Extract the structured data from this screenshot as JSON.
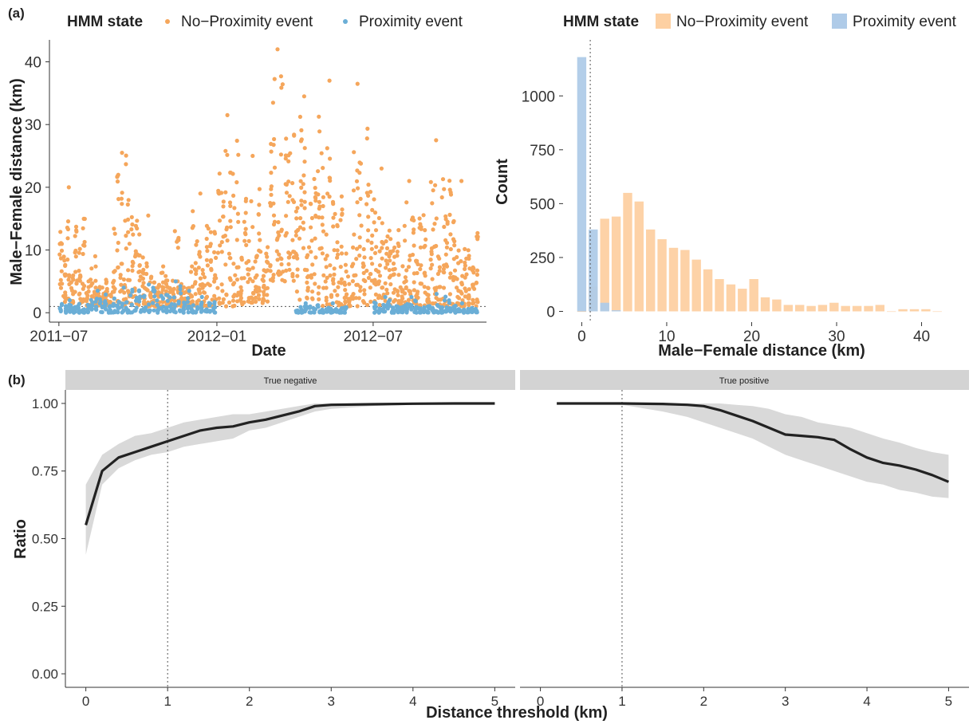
{
  "figure": {
    "panel_a_tag": "(a)",
    "panel_b_tag": "(b)"
  },
  "colors": {
    "no_prox": "#F5A65B",
    "prox": "#6BAED6",
    "no_prox_bar": "#FDD0A2",
    "prox_bar": "#AFCBE8",
    "ribbon": "#D9D9D9",
    "line": "#222222",
    "strip": "#D3D3D3"
  },
  "chart_data": [
    {
      "id": "scatter",
      "type": "scatter",
      "xlabel": "Date",
      "ylabel": "Male−Female distance (km)",
      "x_ticks": [
        "2011-07",
        "2012-01",
        "2012-07"
      ],
      "x_tick_labels": [
        "2011−07",
        "2012−01",
        "2012−07"
      ],
      "x_range": [
        "2011-06-20",
        "2012-11-10"
      ],
      "y_ticks": [
        0,
        10,
        20,
        30,
        40
      ],
      "ylim": [
        -1.5,
        43.5
      ],
      "reference_line_y": 1,
      "legend": {
        "title": "HMM state",
        "position": "top",
        "entries": [
          "No−Proximity event",
          "Proximity event"
        ]
      },
      "series": [
        {
          "name": "No−Proximity event",
          "points_by_month": [
            {
              "month": "2011-07",
              "min": 1.5,
              "max": 20.0,
              "mean": 8.0
            },
            {
              "month": "2011-08",
              "min": 1.0,
              "max": 9.0,
              "mean": 4.5
            },
            {
              "month": "2011-09",
              "min": 1.0,
              "max": 25.5,
              "mean": 7.0
            },
            {
              "month": "2011-10",
              "min": 1.0,
              "max": 15.5,
              "mean": 6.0
            },
            {
              "month": "2011-11",
              "min": 1.0,
              "max": 13.0,
              "mean": 6.0
            },
            {
              "month": "2011-12",
              "min": 1.0,
              "max": 19.0,
              "mean": 7.0
            },
            {
              "month": "2012-01",
              "min": 1.0,
              "max": 31.5,
              "mean": 8.0
            },
            {
              "month": "2012-02",
              "min": 1.5,
              "max": 25.0,
              "mean": 11.0
            },
            {
              "month": "2012-03",
              "min": 5.0,
              "max": 42.0,
              "mean": 22.0
            },
            {
              "month": "2012-04",
              "min": 2.0,
              "max": 34.5,
              "mean": 13.0
            },
            {
              "month": "2012-05",
              "min": 1.0,
              "max": 37.0,
              "mean": 14.0
            },
            {
              "month": "2012-06",
              "min": 1.0,
              "max": 36.5,
              "mean": 11.0
            },
            {
              "month": "2012-07",
              "min": 1.0,
              "max": 23.0,
              "mean": 8.0
            },
            {
              "month": "2012-08",
              "min": 1.0,
              "max": 21.0,
              "mean": 8.0
            },
            {
              "month": "2012-09",
              "min": 1.0,
              "max": 27.5,
              "mean": 9.0
            },
            {
              "month": "2012-10",
              "min": 1.0,
              "max": 21.0,
              "mean": 8.0
            }
          ]
        },
        {
          "name": "Proximity event",
          "points_by_month": [
            {
              "month": "2011-07",
              "min": 0.0,
              "max": 2.0,
              "mean": 0.8
            },
            {
              "month": "2011-08",
              "min": 0.0,
              "max": 3.5,
              "mean": 1.0
            },
            {
              "month": "2011-09",
              "min": 0.0,
              "max": 4.0,
              "mean": 1.0
            },
            {
              "month": "2011-10",
              "min": 0.0,
              "max": 4.5,
              "mean": 1.2
            },
            {
              "month": "2011-11",
              "min": 0.0,
              "max": 5.0,
              "mean": 1.2
            },
            {
              "month": "2011-12",
              "min": 0.0,
              "max": 2.5,
              "mean": 0.8
            },
            {
              "month": "2012-04",
              "min": 0.0,
              "max": 1.5,
              "mean": 0.7
            },
            {
              "month": "2012-05",
              "min": 0.0,
              "max": 1.5,
              "mean": 0.7
            },
            {
              "month": "2012-07",
              "min": 0.0,
              "max": 2.5,
              "mean": 0.9
            },
            {
              "month": "2012-08",
              "min": 0.0,
              "max": 2.5,
              "mean": 0.9
            },
            {
              "month": "2012-09",
              "min": 0.0,
              "max": 3.0,
              "mean": 1.0
            },
            {
              "month": "2012-10",
              "min": 0.0,
              "max": 1.5,
              "mean": 0.7
            }
          ]
        }
      ]
    },
    {
      "id": "histogram",
      "type": "bar",
      "xlabel": "Male−Female distance (km)",
      "ylabel": "Count",
      "x_ticks": [
        0,
        10,
        20,
        30,
        40
      ],
      "y_ticks": [
        0,
        250,
        500,
        750,
        1000
      ],
      "xlim": [
        -2.2,
        43.8
      ],
      "ylim": [
        -50,
        1260
      ],
      "bin_width": 1.35,
      "reference_line_x": 1,
      "legend": {
        "title": "HMM state",
        "position": "top",
        "entries": [
          "No−Proximity event",
          "Proximity event"
        ]
      },
      "series": [
        {
          "name": "No−Proximity event",
          "x": [
            0.0,
            1.35,
            2.7,
            4.05,
            5.4,
            6.75,
            8.1,
            9.45,
            10.8,
            12.15,
            13.5,
            14.85,
            16.2,
            17.55,
            18.9,
            20.25,
            21.6,
            22.95,
            24.3,
            25.65,
            27.0,
            28.35,
            29.7,
            31.05,
            32.4,
            33.75,
            35.1,
            36.45,
            37.8,
            39.15,
            40.5,
            41.85
          ],
          "values": [
            0,
            115,
            430,
            440,
            550,
            510,
            380,
            335,
            295,
            285,
            240,
            195,
            150,
            125,
            105,
            150,
            65,
            55,
            30,
            30,
            25,
            30,
            40,
            25,
            25,
            25,
            30,
            0,
            10,
            10,
            10,
            0
          ]
        },
        {
          "name": "Proximity event",
          "x": [
            0.0,
            1.35,
            2.7,
            4.05
          ],
          "values": [
            1180,
            380,
            40,
            5
          ]
        }
      ]
    },
    {
      "id": "true_negative",
      "type": "line",
      "title": "True negative",
      "xlabel": "Distance threshold (km)",
      "ylabel": "Ratio",
      "x_ticks": [
        0,
        1,
        2,
        3,
        4,
        5
      ],
      "y_ticks": [
        0.0,
        0.25,
        0.5,
        0.75,
        1.0
      ],
      "y_tick_labels": [
        "0.00",
        "0.25",
        "0.50",
        "0.75",
        "1.00"
      ],
      "xlim": [
        -0.25,
        5.25
      ],
      "ylim": [
        -0.05,
        1.05
      ],
      "reference_line_x": 1,
      "x": [
        0.0,
        0.2,
        0.4,
        0.6,
        0.8,
        1.0,
        1.2,
        1.4,
        1.6,
        1.8,
        2.0,
        2.2,
        2.4,
        2.6,
        2.8,
        3.0,
        3.5,
        4.0,
        4.5,
        5.0
      ],
      "values": [
        0.55,
        0.75,
        0.8,
        0.82,
        0.84,
        0.86,
        0.88,
        0.9,
        0.91,
        0.915,
        0.93,
        0.94,
        0.955,
        0.97,
        0.99,
        0.995,
        0.997,
        0.999,
        1.0,
        1.0
      ],
      "lower": [
        0.44,
        0.7,
        0.76,
        0.79,
        0.81,
        0.82,
        0.84,
        0.85,
        0.86,
        0.87,
        0.9,
        0.91,
        0.93,
        0.95,
        0.97,
        0.98,
        0.99,
        0.995,
        1.0,
        1.0
      ],
      "upper": [
        0.7,
        0.81,
        0.85,
        0.88,
        0.89,
        0.91,
        0.93,
        0.94,
        0.95,
        0.96,
        0.96,
        0.97,
        0.98,
        0.99,
        1.0,
        1.0,
        1.0,
        1.0,
        1.0,
        1.0
      ]
    },
    {
      "id": "true_positive",
      "type": "line",
      "title": "True positive",
      "xlabel": "Distance threshold (km)",
      "x_ticks": [
        0,
        1,
        2,
        3,
        4,
        5
      ],
      "xlim": [
        -0.25,
        5.25
      ],
      "ylim": [
        -0.05,
        1.05
      ],
      "reference_line_x": 1,
      "x": [
        0.2,
        0.5,
        1.0,
        1.5,
        1.8,
        2.0,
        2.2,
        2.4,
        2.6,
        2.8,
        3.0,
        3.2,
        3.4,
        3.6,
        3.8,
        4.0,
        4.2,
        4.4,
        4.6,
        4.8,
        5.0
      ],
      "values": [
        1.0,
        1.0,
        1.0,
        0.998,
        0.995,
        0.99,
        0.975,
        0.955,
        0.935,
        0.91,
        0.885,
        0.88,
        0.875,
        0.865,
        0.83,
        0.8,
        0.78,
        0.77,
        0.755,
        0.735,
        0.71
      ],
      "lower": [
        1.0,
        1.0,
        0.995,
        0.97,
        0.95,
        0.93,
        0.91,
        0.89,
        0.87,
        0.84,
        0.81,
        0.79,
        0.77,
        0.75,
        0.73,
        0.71,
        0.7,
        0.68,
        0.67,
        0.655,
        0.65
      ],
      "upper": [
        1.0,
        1.0,
        1.0,
        1.0,
        1.0,
        1.0,
        1.0,
        0.995,
        0.99,
        0.98,
        0.96,
        0.95,
        0.93,
        0.92,
        0.91,
        0.89,
        0.87,
        0.855,
        0.835,
        0.82,
        0.81
      ]
    }
  ]
}
